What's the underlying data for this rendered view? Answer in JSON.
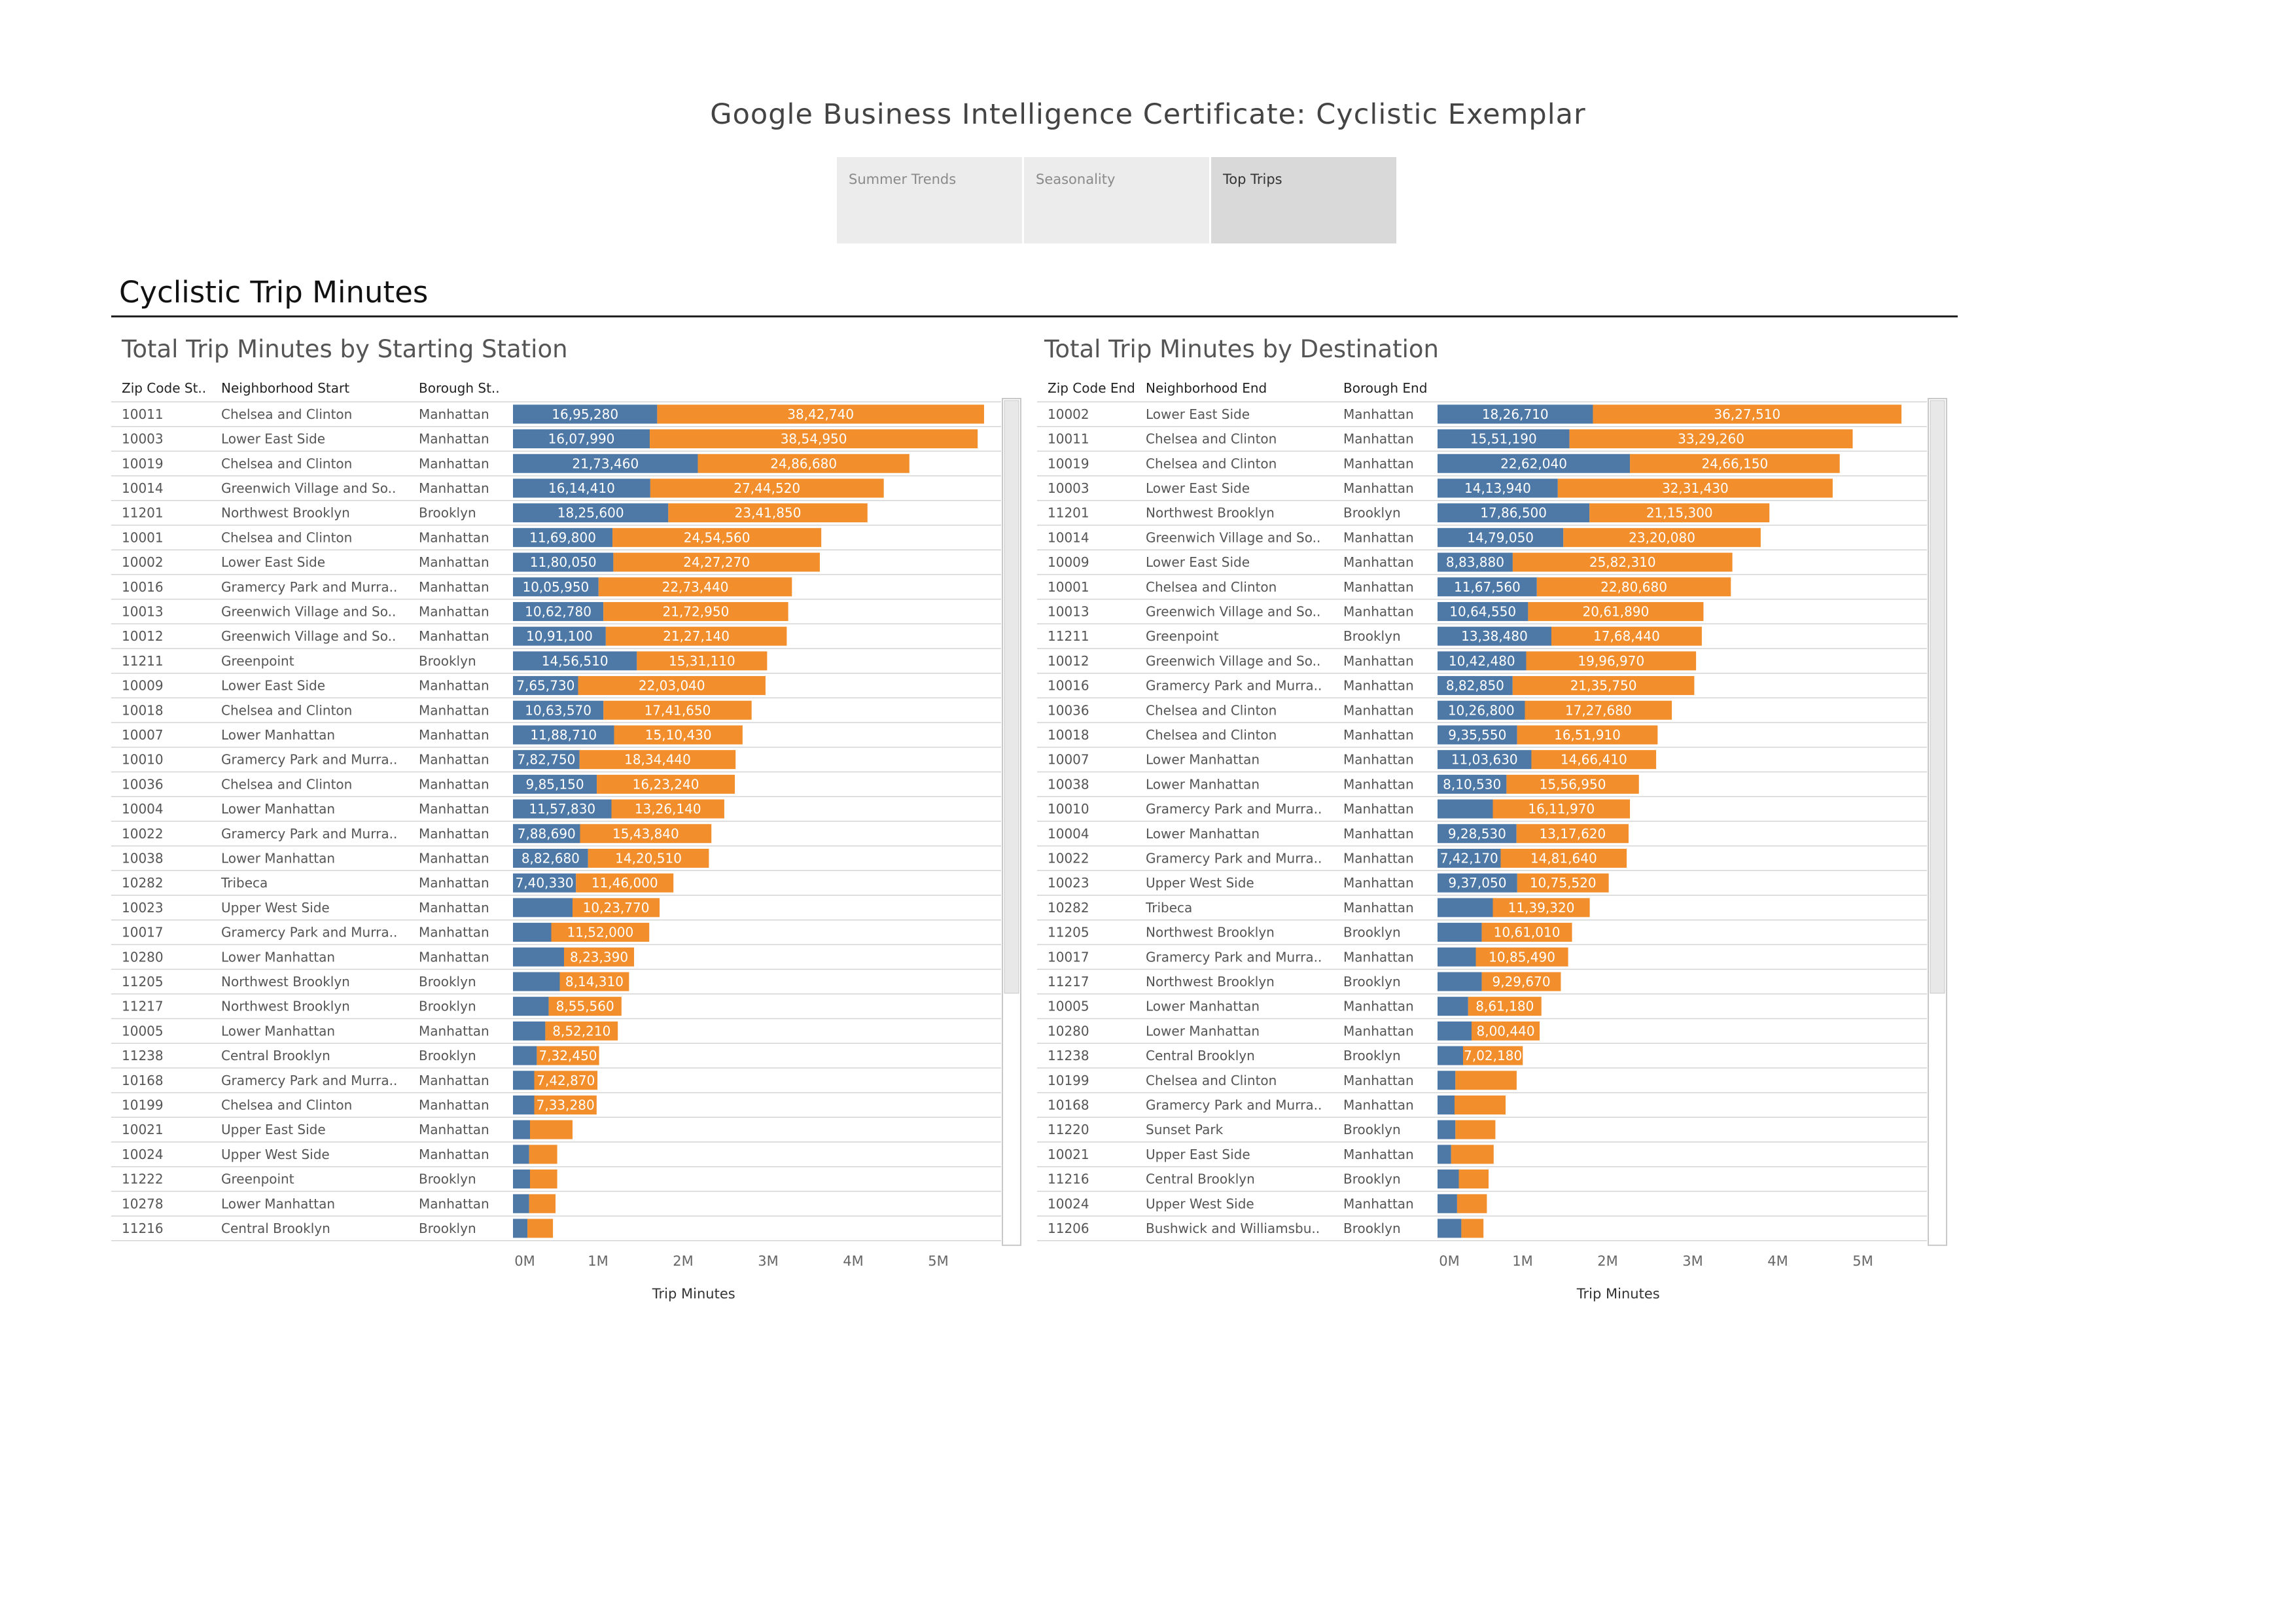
{
  "header": {
    "title": "Google Business Intelligence Certificate: Cyclistic Exemplar"
  },
  "tabs": [
    {
      "label": "Summer Trends",
      "active": false
    },
    {
      "label": "Seasonality",
      "active": false
    },
    {
      "label": "Top Trips",
      "active": true
    }
  ],
  "section_title": "Cyclistic Trip Minutes",
  "colors": {
    "series1": "#4e79a7",
    "series2": "#f28e2b"
  },
  "chart_data": [
    {
      "type": "bar",
      "orientation": "horizontal",
      "stacked": true,
      "title": "Total Trip Minutes by Starting Station",
      "columns": [
        "Zip Code St..",
        "Neighborhood Start",
        "Borough St.."
      ],
      "xlabel": "Trip Minutes",
      "xticks": [
        "0M",
        "1M",
        "2M",
        "3M",
        "4M",
        "5M"
      ],
      "xlim": [
        0,
        5800000
      ],
      "rows": [
        [
          "10011",
          "Chelsea and Clinton",
          "Manhattan"
        ],
        [
          "10003",
          "Lower East Side",
          "Manhattan"
        ],
        [
          "10019",
          "Chelsea and Clinton",
          "Manhattan"
        ],
        [
          "10014",
          "Greenwich Village and So..",
          "Manhattan"
        ],
        [
          "11201",
          "Northwest Brooklyn",
          "Brooklyn"
        ],
        [
          "10001",
          "Chelsea and Clinton",
          "Manhattan"
        ],
        [
          "10002",
          "Lower East Side",
          "Manhattan"
        ],
        [
          "10016",
          "Gramercy Park and Murra..",
          "Manhattan"
        ],
        [
          "10013",
          "Greenwich Village and So..",
          "Manhattan"
        ],
        [
          "10012",
          "Greenwich Village and So..",
          "Manhattan"
        ],
        [
          "11211",
          "Greenpoint",
          "Brooklyn"
        ],
        [
          "10009",
          "Lower East Side",
          "Manhattan"
        ],
        [
          "10018",
          "Chelsea and Clinton",
          "Manhattan"
        ],
        [
          "10007",
          "Lower Manhattan",
          "Manhattan"
        ],
        [
          "10010",
          "Gramercy Park and Murra..",
          "Manhattan"
        ],
        [
          "10036",
          "Chelsea and Clinton",
          "Manhattan"
        ],
        [
          "10004",
          "Lower Manhattan",
          "Manhattan"
        ],
        [
          "10022",
          "Gramercy Park and Murra..",
          "Manhattan"
        ],
        [
          "10038",
          "Lower Manhattan",
          "Manhattan"
        ],
        [
          "10282",
          "Tribeca",
          "Manhattan"
        ],
        [
          "10023",
          "Upper West Side",
          "Manhattan"
        ],
        [
          "10017",
          "Gramercy Park and Murra..",
          "Manhattan"
        ],
        [
          "10280",
          "Lower Manhattan",
          "Manhattan"
        ],
        [
          "11205",
          "Northwest Brooklyn",
          "Brooklyn"
        ],
        [
          "11217",
          "Northwest Brooklyn",
          "Brooklyn"
        ],
        [
          "10005",
          "Lower Manhattan",
          "Manhattan"
        ],
        [
          "11238",
          "Central Brooklyn",
          "Brooklyn"
        ],
        [
          "10168",
          "Gramercy Park and Murra..",
          "Manhattan"
        ],
        [
          "10199",
          "Chelsea and Clinton",
          "Manhattan"
        ],
        [
          "10021",
          "Upper East Side",
          "Manhattan"
        ],
        [
          "10024",
          "Upper West Side",
          "Manhattan"
        ],
        [
          "11222",
          "Greenpoint",
          "Brooklyn"
        ],
        [
          "10278",
          "Lower Manhattan",
          "Manhattan"
        ],
        [
          "11216",
          "Central Brooklyn",
          "Brooklyn"
        ]
      ],
      "series": [
        {
          "values": [
            1695280,
            1607990,
            2173460,
            1614410,
            1825600,
            1169800,
            1180050,
            1005950,
            1062780,
            1091100,
            1456510,
            765730,
            1063570,
            1188710,
            782750,
            985150,
            1157830,
            788690,
            882680,
            740330,
            700000,
            450000,
            600000,
            550000,
            420000,
            380000,
            280000,
            250000,
            250000,
            200000,
            190000,
            200000,
            190000,
            170000
          ],
          "labels": [
            "16,95,280",
            "16,07,990",
            "21,73,460",
            "16,14,410",
            "18,25,600",
            "11,69,800",
            "11,80,050",
            "10,05,950",
            "10,62,780",
            "10,91,100",
            "14,56,510",
            "7,65,730",
            "10,63,570",
            "11,88,710",
            "7,82,750",
            "9,85,150",
            "11,57,830",
            "7,88,690",
            "8,82,680",
            "7,40,330",
            "",
            "",
            "",
            "",
            "",
            "",
            "",
            "",
            "",
            "",
            "",
            "",
            "",
            ""
          ]
        },
        {
          "values": [
            3842740,
            3854950,
            2486680,
            2744520,
            2341850,
            2454560,
            2427270,
            2273440,
            2172950,
            2127140,
            1531110,
            2203040,
            1741650,
            1510430,
            1834440,
            1623240,
            1326140,
            1543840,
            1420510,
            1146000,
            1023770,
            1152000,
            823390,
            814310,
            855560,
            852210,
            732450,
            742870,
            733280,
            500000,
            330000,
            320000,
            310000,
            300000
          ],
          "labels": [
            "38,42,740",
            "38,54,950",
            "24,86,680",
            "27,44,520",
            "23,41,850",
            "24,54,560",
            "24,27,270",
            "22,73,440",
            "21,72,950",
            "21,27,140",
            "15,31,110",
            "22,03,040",
            "17,41,650",
            "15,10,430",
            "18,34,440",
            "16,23,240",
            "13,26,140",
            "15,43,840",
            "14,20,510",
            "11,46,000",
            "10,23,770",
            "11,52,000",
            "8,23,390",
            "8,14,310",
            "8,55,560",
            "8,52,210",
            "7,32,450",
            "7,42,870",
            "7,33,280",
            "",
            "",
            "",
            "",
            ""
          ]
        }
      ]
    },
    {
      "type": "bar",
      "orientation": "horizontal",
      "stacked": true,
      "title": "Total Trip Minutes by Destination",
      "columns": [
        "Zip Code End",
        "Neighborhood End",
        "Borough End"
      ],
      "xlabel": "Trip Minutes",
      "xticks": [
        "0M",
        "1M",
        "2M",
        "3M",
        "4M",
        "5M"
      ],
      "xlim": [
        0,
        5800000
      ],
      "rows": [
        [
          "10002",
          "Lower East Side",
          "Manhattan"
        ],
        [
          "10011",
          "Chelsea and Clinton",
          "Manhattan"
        ],
        [
          "10019",
          "Chelsea and Clinton",
          "Manhattan"
        ],
        [
          "10003",
          "Lower East Side",
          "Manhattan"
        ],
        [
          "11201",
          "Northwest Brooklyn",
          "Brooklyn"
        ],
        [
          "10014",
          "Greenwich Village and So..",
          "Manhattan"
        ],
        [
          "10009",
          "Lower East Side",
          "Manhattan"
        ],
        [
          "10001",
          "Chelsea and Clinton",
          "Manhattan"
        ],
        [
          "10013",
          "Greenwich Village and So..",
          "Manhattan"
        ],
        [
          "11211",
          "Greenpoint",
          "Brooklyn"
        ],
        [
          "10012",
          "Greenwich Village and So..",
          "Manhattan"
        ],
        [
          "10016",
          "Gramercy Park and Murra..",
          "Manhattan"
        ],
        [
          "10036",
          "Chelsea and Clinton",
          "Manhattan"
        ],
        [
          "10018",
          "Chelsea and Clinton",
          "Manhattan"
        ],
        [
          "10007",
          "Lower Manhattan",
          "Manhattan"
        ],
        [
          "10038",
          "Lower Manhattan",
          "Manhattan"
        ],
        [
          "10010",
          "Gramercy Park and Murra..",
          "Manhattan"
        ],
        [
          "10004",
          "Lower Manhattan",
          "Manhattan"
        ],
        [
          "10022",
          "Gramercy Park and Murra..",
          "Manhattan"
        ],
        [
          "10023",
          "Upper West Side",
          "Manhattan"
        ],
        [
          "10282",
          "Tribeca",
          "Manhattan"
        ],
        [
          "11205",
          "Northwest Brooklyn",
          "Brooklyn"
        ],
        [
          "10017",
          "Gramercy Park and Murra..",
          "Manhattan"
        ],
        [
          "11217",
          "Northwest Brooklyn",
          "Brooklyn"
        ],
        [
          "10005",
          "Lower Manhattan",
          "Manhattan"
        ],
        [
          "10280",
          "Lower Manhattan",
          "Manhattan"
        ],
        [
          "11238",
          "Central Brooklyn",
          "Brooklyn"
        ],
        [
          "10199",
          "Chelsea and Clinton",
          "Manhattan"
        ],
        [
          "10168",
          "Gramercy Park and Murra..",
          "Manhattan"
        ],
        [
          "11220",
          "Sunset Park",
          "Brooklyn"
        ],
        [
          "10021",
          "Upper East Side",
          "Manhattan"
        ],
        [
          "11216",
          "Central Brooklyn",
          "Brooklyn"
        ],
        [
          "10024",
          "Upper West Side",
          "Manhattan"
        ],
        [
          "11206",
          "Bushwick and Williamsbu..",
          "Brooklyn"
        ]
      ],
      "series": [
        {
          "values": [
            1826710,
            1551190,
            2262040,
            1413940,
            1786500,
            1479050,
            883880,
            1167560,
            1064550,
            1338480,
            1042480,
            882850,
            1026800,
            935550,
            1103630,
            810530,
            650000,
            928530,
            742170,
            937050,
            650000,
            520000,
            450000,
            520000,
            360000,
            400000,
            300000,
            210000,
            200000,
            210000,
            160000,
            250000,
            230000,
            280000
          ],
          "labels": [
            "18,26,710",
            "15,51,190",
            "22,62,040",
            "14,13,940",
            "17,86,500",
            "14,79,050",
            "8,83,880",
            "11,67,560",
            "10,64,550",
            "13,38,480",
            "10,42,480",
            "8,82,850",
            "10,26,800",
            "9,35,550",
            "11,03,630",
            "8,10,530",
            "",
            "9,28,530",
            "7,42,170",
            "9,37,050",
            "",
            "",
            "",
            "",
            "",
            "",
            "",
            "",
            "",
            "",
            "",
            "",
            "",
            ""
          ]
        },
        {
          "values": [
            3627510,
            3329260,
            2466150,
            3231430,
            2115300,
            2320080,
            2582310,
            2280680,
            2061890,
            1768440,
            1996970,
            2135750,
            1727680,
            1651910,
            1466410,
            1556950,
            1611970,
            1317620,
            1481640,
            1075520,
            1139320,
            1061010,
            1085490,
            929670,
            861180,
            800440,
            702180,
            720000,
            600000,
            470000,
            500000,
            350000,
            350000,
            260000
          ],
          "labels": [
            "36,27,510",
            "33,29,260",
            "24,66,150",
            "32,31,430",
            "21,15,300",
            "23,20,080",
            "25,82,310",
            "22,80,680",
            "20,61,890",
            "17,68,440",
            "19,96,970",
            "21,35,750",
            "17,27,680",
            "16,51,910",
            "14,66,410",
            "15,56,950",
            "16,11,970",
            "13,17,620",
            "14,81,640",
            "10,75,520",
            "11,39,320",
            "10,61,010",
            "10,85,490",
            "9,29,670",
            "8,61,180",
            "8,00,440",
            "7,02,180",
            "",
            "",
            "",
            "",
            "",
            "",
            ""
          ]
        }
      ]
    }
  ]
}
